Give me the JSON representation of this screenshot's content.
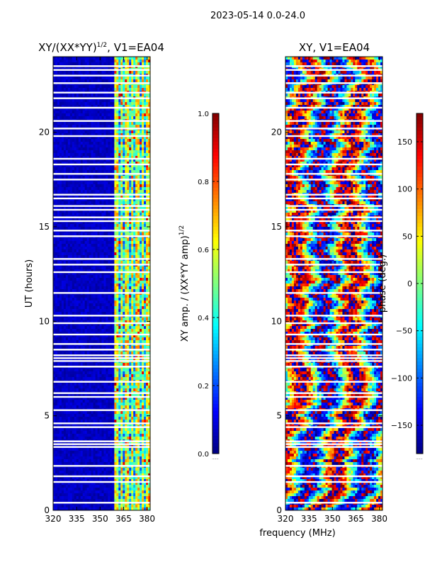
{
  "figure_title": "2023-05-14 0.0-24.0",
  "shared_xlabel": "frequency (MHz)",
  "colors": {
    "background": "#ffffff",
    "gap": "#ffffff",
    "jet": [
      "#00007f",
      "#0000ff",
      "#007fff",
      "#00ffff",
      "#7fff7f",
      "#ffff00",
      "#ff7f00",
      "#ff0000",
      "#7f0000"
    ]
  },
  "chart_data": [
    {
      "type": "heatmap",
      "title_main": "XY/(XX*YY)",
      "title_sup": "1/2",
      "title_tail": ", V1=EA04",
      "xlabel": "",
      "ylabel": "UT (hours)",
      "xlim": [
        320,
        382
      ],
      "ylim": [
        0,
        24
      ],
      "xticks": [
        320,
        335,
        350,
        365,
        380
      ],
      "yticks": [
        0,
        5,
        10,
        15,
        20
      ],
      "value_range": [
        0.0,
        1.0
      ],
      "colorbar": {
        "label_main": "XY amp. / (XX*YY amp)",
        "label_sup": "1/2",
        "ticks": [
          0.0,
          0.2,
          0.4,
          0.6,
          0.8,
          1.0
        ],
        "tick_labels": [
          "0.0",
          "0.2",
          "0.4",
          "0.6",
          "0.8",
          "1.0"
        ],
        "offset_text": "......"
      },
      "high_band_mhz": [
        360,
        382
      ],
      "gaps_ut": [
        0.4,
        1.5,
        1.8,
        2.35,
        3.35,
        3.5,
        3.65,
        4.4,
        4.6,
        5.3,
        6.0,
        6.2,
        6.8,
        7.6,
        7.9,
        8.05,
        8.2,
        8.5,
        8.8,
        9.3,
        9.9,
        10.3,
        11.5,
        12.6,
        13.0,
        13.3,
        14.5,
        14.8,
        15.3,
        15.5,
        15.9,
        16.1,
        16.5,
        16.7,
        17.5,
        17.8,
        18.3,
        18.6,
        19.8,
        20.2,
        20.6,
        21.3,
        21.8,
        22.1,
        22.6,
        23.0,
        23.3,
        23.5
      ]
    },
    {
      "type": "heatmap",
      "title_main": "XY, V1=EA04",
      "title_sup": "",
      "title_tail": "",
      "xlabel": "",
      "ylabel": "",
      "xlim": [
        320,
        382
      ],
      "ylim": [
        0,
        24
      ],
      "xticks": [
        320,
        335,
        350,
        365,
        380
      ],
      "yticks": [
        0,
        5,
        10,
        15,
        20
      ],
      "value_range": [
        -180,
        180
      ],
      "colorbar": {
        "label_main": "phase (deg.)",
        "label_sup": "",
        "ticks": [
          -150,
          -100,
          -50,
          0,
          50,
          100,
          150
        ],
        "tick_labels": [
          "−150",
          "−100",
          "−50",
          "0",
          "50",
          "100",
          "150"
        ],
        "offset_text": "......"
      },
      "gaps_ut": [
        0.4,
        1.5,
        1.8,
        2.35,
        3.35,
        3.5,
        3.65,
        4.4,
        4.6,
        5.3,
        6.0,
        6.2,
        6.8,
        7.6,
        7.9,
        8.05,
        8.2,
        8.5,
        8.8,
        9.3,
        9.9,
        10.3,
        11.5,
        12.6,
        13.0,
        13.3,
        14.5,
        14.8,
        15.3,
        15.5,
        15.9,
        16.1,
        16.5,
        16.7,
        17.5,
        17.8,
        18.3,
        18.6,
        19.8,
        20.2,
        20.6,
        21.3,
        21.8,
        22.1,
        22.6,
        23.0,
        23.3,
        23.5
      ]
    }
  ]
}
